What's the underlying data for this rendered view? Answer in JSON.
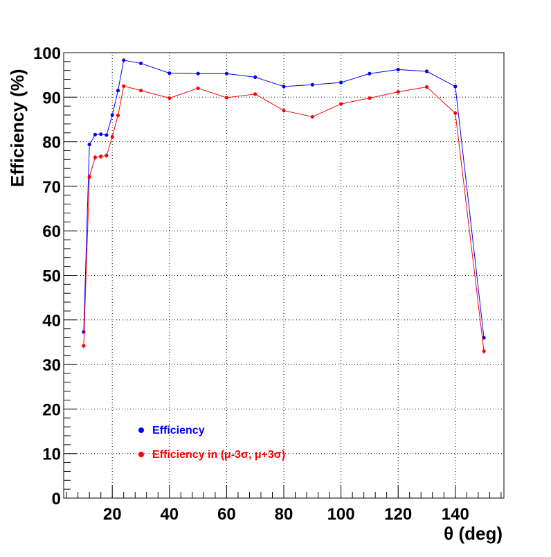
{
  "chart_data": {
    "type": "line",
    "xlabel": "θ (deg)",
    "ylabel": "Efficiency (%)",
    "xlim": [
      3,
      157
    ],
    "ylim": [
      0,
      100
    ],
    "x_ticks": [
      20,
      40,
      60,
      80,
      100,
      120,
      140
    ],
    "y_ticks": [
      0,
      10,
      20,
      30,
      40,
      50,
      60,
      70,
      80,
      90,
      100
    ],
    "grid": true,
    "legend_position": "bottom-left",
    "series": [
      {
        "name": "Efficiency",
        "color": "#0000ff",
        "x": [
          10,
          12,
          14,
          16,
          18,
          20,
          22,
          24,
          30,
          40,
          50,
          60,
          70,
          80,
          90,
          100,
          110,
          120,
          130,
          140,
          150
        ],
        "y": [
          37.3,
          79.4,
          81.6,
          81.7,
          81.5,
          86.0,
          91.5,
          98.3,
          97.6,
          95.4,
          95.3,
          95.3,
          94.5,
          92.4,
          92.8,
          93.3,
          95.3,
          96.2,
          95.8,
          92.4,
          36.0
        ],
        "err": [
          0.4,
          0.3,
          0.3,
          0.3,
          0.3,
          0.3,
          0.3,
          0.2,
          0.2,
          0.2,
          0.2,
          0.2,
          0.2,
          0.2,
          0.2,
          0.2,
          0.2,
          0.2,
          0.2,
          0.2,
          0.4
        ]
      },
      {
        "name": "Efficiency in (μ-3σ,  μ+3σ)",
        "color": "#ff0000",
        "x": [
          10,
          12,
          14,
          16,
          18,
          20,
          22,
          24,
          30,
          40,
          50,
          60,
          70,
          80,
          90,
          100,
          110,
          120,
          130,
          140,
          150
        ],
        "y": [
          34.2,
          72.1,
          76.5,
          76.7,
          76.9,
          81.1,
          85.9,
          92.5,
          91.5,
          89.8,
          92.0,
          89.9,
          90.7,
          87.0,
          85.6,
          88.5,
          89.8,
          91.2,
          92.3,
          86.4,
          33.0
        ],
        "err": [
          0.6,
          0.6,
          0.5,
          0.5,
          0.5,
          0.5,
          0.4,
          0.3,
          0.3,
          0.3,
          0.3,
          0.3,
          0.3,
          0.3,
          0.3,
          0.3,
          0.3,
          0.3,
          0.3,
          0.4,
          0.6
        ]
      }
    ]
  }
}
